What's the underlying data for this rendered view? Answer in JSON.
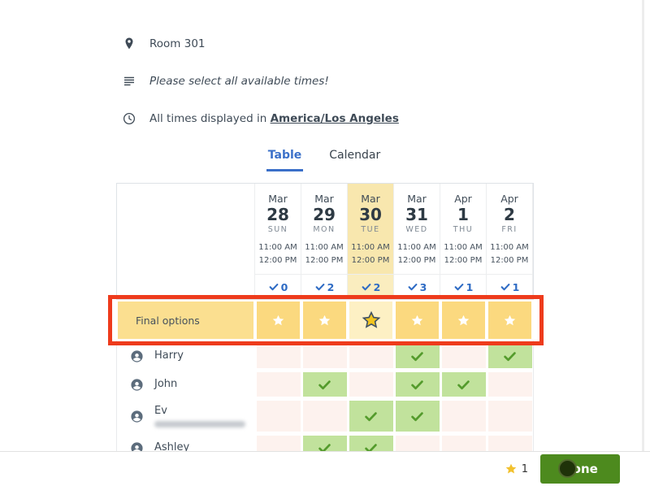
{
  "header": {
    "location": "Room 301",
    "note": "Please select all available times!",
    "timezone_prefix": "All times displayed in",
    "timezone": "America/Los Angeles"
  },
  "tabs": {
    "table_label": "Table",
    "calendar_label": "Calendar",
    "active": "Table"
  },
  "schedule": {
    "columns": [
      {
        "month": "Mar",
        "day": "28",
        "weekday": "SUN",
        "start": "11:00 AM",
        "end": "12:00 PM",
        "count": "0",
        "highlighted": false
      },
      {
        "month": "Mar",
        "day": "29",
        "weekday": "MON",
        "start": "11:00 AM",
        "end": "12:00 PM",
        "count": "2",
        "highlighted": false
      },
      {
        "month": "Mar",
        "day": "30",
        "weekday": "TUE",
        "start": "11:00 AM",
        "end": "12:00 PM",
        "count": "2",
        "highlighted": true
      },
      {
        "month": "Mar",
        "day": "31",
        "weekday": "WED",
        "start": "11:00 AM",
        "end": "12:00 PM",
        "count": "3",
        "highlighted": false
      },
      {
        "month": "Apr",
        "day": "1",
        "weekday": "THU",
        "start": "11:00 AM",
        "end": "12:00 PM",
        "count": "1",
        "highlighted": false
      },
      {
        "month": "Apr",
        "day": "2",
        "weekday": "FRI",
        "start": "11:00 AM",
        "end": "12:00 PM",
        "count": "1",
        "highlighted": false
      }
    ],
    "final_options": {
      "label": "Final options",
      "selected_column": 2
    },
    "participants": [
      {
        "name": "Harry",
        "redacted": false,
        "availability": [
          false,
          false,
          false,
          true,
          false,
          true
        ]
      },
      {
        "name": "John",
        "redacted": false,
        "availability": [
          false,
          true,
          false,
          true,
          true,
          false
        ]
      },
      {
        "name": "Ev",
        "redacted": true,
        "availability": [
          false,
          false,
          true,
          true,
          false,
          false
        ]
      },
      {
        "name": "Ashley",
        "redacted": false,
        "availability": [
          false,
          true,
          true,
          false,
          false,
          false
        ]
      }
    ]
  },
  "footer": {
    "selected_star_count": "1",
    "done_label": "Done"
  },
  "colors": {
    "accent_blue": "#3b70c9",
    "highlight_yellow": "#f8e7ae",
    "final_row_yellow": "#fbd97f",
    "selected_star_gold": "#f2c41f",
    "available_green": "#c1e29c",
    "check_green": "#549b2c",
    "unavailable_pink": "#fdf2ee",
    "annotation_red": "#ee3b1c",
    "done_green": "#4d8a1e"
  }
}
